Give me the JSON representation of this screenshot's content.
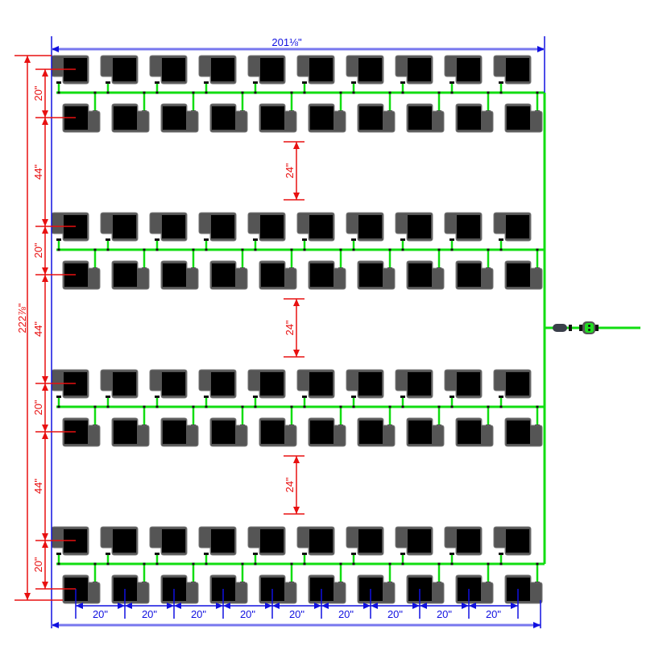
{
  "dimensions": {
    "overall_width": "201⅛\"",
    "overall_height": "222⅞\"",
    "row_spacing": "20\"",
    "group_spacing": "44\"",
    "aisle_width": "24\"",
    "pot_spacing": "20\""
  },
  "layout": {
    "groups": 4,
    "pots_per_row": 10,
    "rows_per_group": 2
  },
  "colors": {
    "width_dimension": "#1010e0",
    "height_dimension": "#e81010",
    "drip_line": "#11dd11",
    "pot_body": "#555555",
    "pot_insert": "#000000"
  },
  "icons": {
    "pot": "grow-pot-icon",
    "feed_connector": "hose-connector-icon",
    "filter": "inline-filter-icon"
  }
}
